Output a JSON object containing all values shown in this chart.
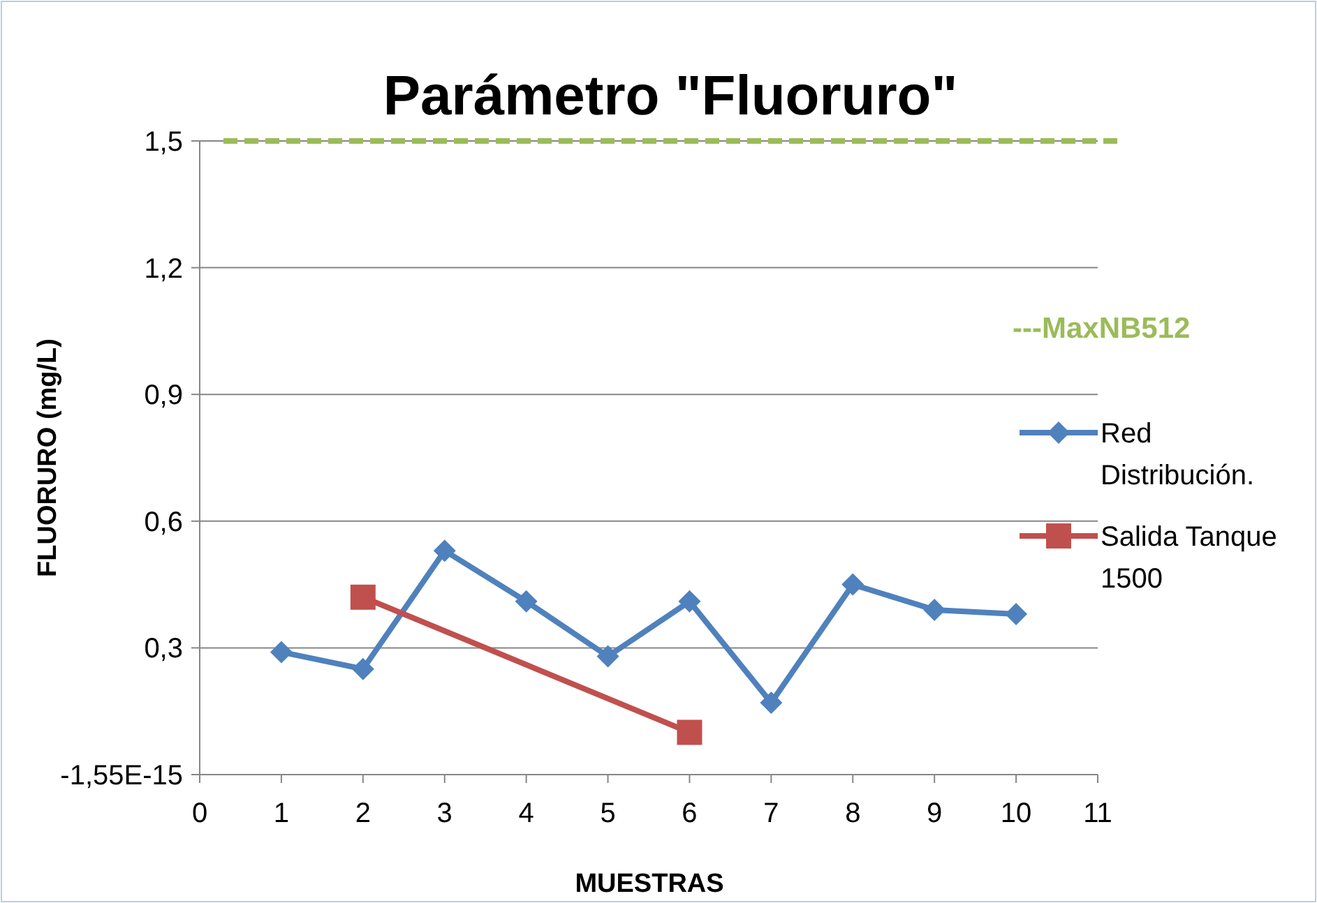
{
  "chart_data": {
    "type": "line",
    "title": "Parámetro \"Fluoruro\"",
    "xlabel": "MUESTRAS",
    "ylabel": "FLUORURO (mg/L)",
    "xlim": [
      0,
      11
    ],
    "xticks": [
      0,
      1,
      2,
      3,
      4,
      5,
      6,
      7,
      8,
      9,
      10,
      11
    ],
    "ylim": [
      0,
      1.5
    ],
    "yticks": [
      {
        "value": 0,
        "label": "-1,55E-15"
      },
      {
        "value": 0.3,
        "label": "0,3"
      },
      {
        "value": 0.6,
        "label": "0,6"
      },
      {
        "value": 0.9,
        "label": "0,9"
      },
      {
        "value": 1.2,
        "label": "1,2"
      },
      {
        "value": 1.5,
        "label": "1,5"
      }
    ],
    "grid": "y",
    "legend": "right",
    "series": [
      {
        "name": "Red Distribución.",
        "color": "#4f81bd",
        "marker": "diamond",
        "x": [
          1,
          2,
          3,
          4,
          5,
          6,
          7,
          8,
          9,
          10
        ],
        "values": [
          0.29,
          0.25,
          0.53,
          0.41,
          0.28,
          0.41,
          0.17,
          0.45,
          0.39,
          0.38
        ]
      },
      {
        "name": "Salida Tanque 1500",
        "color": "#c0504d",
        "marker": "square",
        "x": [
          2,
          6
        ],
        "values": [
          0.42,
          0.1
        ]
      }
    ],
    "ref_lines": [
      {
        "axis": "y",
        "value": 1.5,
        "label": "---MaxNB512",
        "color": "#9bbb59",
        "line_style": "dashed"
      }
    ]
  }
}
